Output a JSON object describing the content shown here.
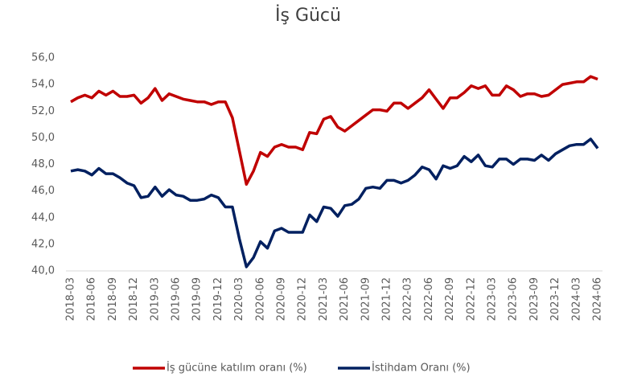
{
  "chart_data": {
    "type": "line",
    "title": "İş Gücü",
    "categories": [
      "2018-03",
      null,
      null,
      "2018-06",
      null,
      null,
      "2018-09",
      null,
      null,
      "2018-12",
      null,
      null,
      "2019-03",
      null,
      null,
      "2019-06",
      null,
      null,
      "2019-09",
      null,
      null,
      "2019-12",
      null,
      null,
      "2020-03",
      null,
      null,
      "2020-06",
      null,
      null,
      "2020-09",
      null,
      null,
      "2020-12",
      null,
      null,
      "2021-03",
      null,
      null,
      "2021-06",
      null,
      null,
      "2021-09",
      null,
      null,
      "2021-12",
      null,
      null,
      "2022-03",
      null,
      null,
      "2022-06",
      null,
      null,
      "2022-09",
      null,
      null,
      "2022-12",
      null,
      null,
      "2023-03",
      null,
      null,
      "2023-06",
      null,
      null,
      "2023-09",
      null,
      null,
      "2023-12",
      null,
      null,
      "2024-03",
      null,
      null,
      "2024-06"
    ],
    "series": [
      {
        "name": "İş gücüne katılım oranı (%)",
        "color": "#c00000",
        "values": [
          52.7,
          53.0,
          53.2,
          53.0,
          53.5,
          53.2,
          53.5,
          53.1,
          53.1,
          53.2,
          52.6,
          53.0,
          53.7,
          52.8,
          53.3,
          53.1,
          52.9,
          52.8,
          52.7,
          52.7,
          52.5,
          52.7,
          52.7,
          51.5,
          49.0,
          46.5,
          47.5,
          48.9,
          48.6,
          49.3,
          49.5,
          49.3,
          49.3,
          49.1,
          50.4,
          50.3,
          51.4,
          51.6,
          50.8,
          50.5,
          50.9,
          51.3,
          51.7,
          52.1,
          52.1,
          52.0,
          52.6,
          52.6,
          52.2,
          52.6,
          53.0,
          53.6,
          52.9,
          52.2,
          53.0,
          53.0,
          53.4,
          53.9,
          53.7,
          53.9,
          53.2,
          53.2,
          53.9,
          53.6,
          53.1,
          53.3,
          53.3,
          53.1,
          53.2,
          53.6,
          54.0,
          54.1,
          54.2,
          54.2,
          54.6,
          54.4
        ]
      },
      {
        "name": "İstihdam Oranı (%)",
        "color": "#002060",
        "values": [
          47.5,
          47.6,
          47.5,
          47.2,
          47.7,
          47.3,
          47.3,
          47.0,
          46.6,
          46.4,
          45.5,
          45.6,
          46.3,
          45.6,
          46.1,
          45.7,
          45.6,
          45.3,
          45.3,
          45.4,
          45.7,
          45.5,
          44.8,
          44.8,
          42.4,
          40.3,
          41.0,
          42.2,
          41.7,
          43.0,
          43.2,
          42.9,
          42.9,
          42.9,
          44.2,
          43.7,
          44.8,
          44.7,
          44.1,
          44.9,
          45.0,
          45.4,
          46.2,
          46.3,
          46.2,
          46.8,
          46.8,
          46.6,
          46.8,
          47.2,
          47.8,
          47.6,
          46.9,
          47.9,
          47.7,
          47.9,
          48.6,
          48.2,
          48.7,
          47.9,
          47.8,
          48.4,
          48.4,
          48.0,
          48.4,
          48.4,
          48.3,
          48.7,
          48.3,
          48.8,
          49.1,
          49.4,
          49.5,
          49.5,
          49.9,
          49.2
        ]
      }
    ],
    "ylim": [
      40,
      56
    ],
    "yticks": [
      {
        "value": 40,
        "label": "40,0"
      },
      {
        "value": 42,
        "label": "42,0"
      },
      {
        "value": 44,
        "label": "44,0"
      },
      {
        "value": 46,
        "label": "46,0"
      },
      {
        "value": 48,
        "label": "48,0"
      },
      {
        "value": 50,
        "label": "50,0"
      },
      {
        "value": 52,
        "label": "52,0"
      },
      {
        "value": 54,
        "label": "54,0"
      },
      {
        "value": 56,
        "label": "56,0"
      }
    ],
    "grid": false,
    "legend": "bottom"
  }
}
